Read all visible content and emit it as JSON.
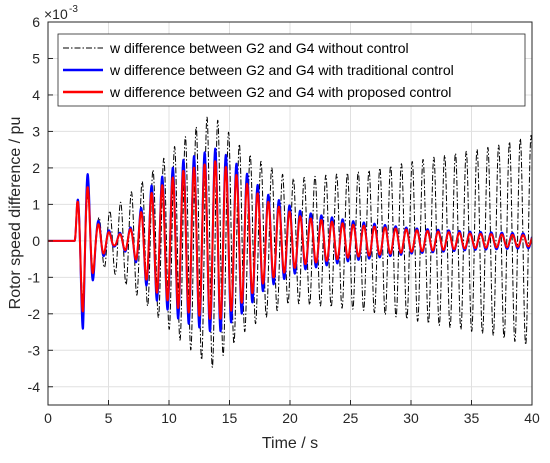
{
  "chart_data": {
    "type": "line",
    "xlabel": "Time / s",
    "ylabel": "Rotor speed difference / pu",
    "xlim": [
      0,
      40
    ],
    "ylim": [
      -4.5,
      6
    ],
    "y_scale_exponent_base": "×10",
    "y_scale_exponent_power": "-3",
    "x_ticks": [
      "0",
      "5",
      "10",
      "15",
      "20",
      "25",
      "30",
      "35",
      "40"
    ],
    "y_ticks": [
      "-4",
      "-3",
      "-2",
      "-1",
      "0",
      "1",
      "2",
      "3",
      "4",
      "5",
      "6"
    ],
    "grid": true,
    "legend_position": "top",
    "disturbance_time": 2.2,
    "series": [
      {
        "name": "w difference between G2 and G4 without control",
        "color": "#000000",
        "style": "dashdot",
        "frequency_hz": 1.12,
        "envelope": [
          [
            2.2,
            0
          ],
          [
            2.4,
            0.9
          ],
          [
            2.9,
            1.6
          ],
          [
            4.0,
            0.6
          ],
          [
            5.5,
            0.9
          ],
          [
            8.0,
            1.7
          ],
          [
            10.5,
            2.6
          ],
          [
            13.5,
            3.5
          ],
          [
            16.5,
            2.4
          ],
          [
            20.0,
            1.7
          ],
          [
            26.0,
            1.9
          ],
          [
            32.0,
            2.3
          ],
          [
            37.0,
            2.6
          ],
          [
            40.0,
            2.9
          ]
        ]
      },
      {
        "name": "w difference between G2 and G4 with traditional control",
        "color": "#0000ff",
        "style": "solid",
        "frequency_hz": 1.14,
        "envelope": [
          [
            2.2,
            0
          ],
          [
            2.4,
            1.0
          ],
          [
            2.9,
            2.5
          ],
          [
            4.0,
            0.6
          ],
          [
            5.5,
            0.15
          ],
          [
            7.0,
            0.4
          ],
          [
            8.5,
            1.5
          ],
          [
            11.0,
            2.2
          ],
          [
            14.0,
            2.55
          ],
          [
            16.0,
            2.0
          ],
          [
            18.0,
            1.3
          ],
          [
            21.0,
            0.8
          ],
          [
            25.0,
            0.55
          ],
          [
            30.0,
            0.35
          ],
          [
            35.0,
            0.25
          ],
          [
            40.0,
            0.2
          ]
        ]
      },
      {
        "name": "w difference between G2 and G4 with proposed control",
        "color": "#ff0000",
        "style": "solid",
        "frequency_hz": 1.14,
        "envelope": [
          [
            2.2,
            0
          ],
          [
            2.4,
            1.0
          ],
          [
            2.9,
            2.0
          ],
          [
            4.0,
            0.5
          ],
          [
            5.5,
            0.12
          ],
          [
            7.0,
            0.35
          ],
          [
            8.5,
            1.3
          ],
          [
            11.0,
            1.9
          ],
          [
            14.0,
            2.2
          ],
          [
            16.0,
            1.7
          ],
          [
            18.0,
            1.1
          ],
          [
            21.0,
            0.65
          ],
          [
            25.0,
            0.45
          ],
          [
            30.0,
            0.3
          ],
          [
            35.0,
            0.2
          ],
          [
            40.0,
            0.15
          ]
        ]
      }
    ]
  }
}
